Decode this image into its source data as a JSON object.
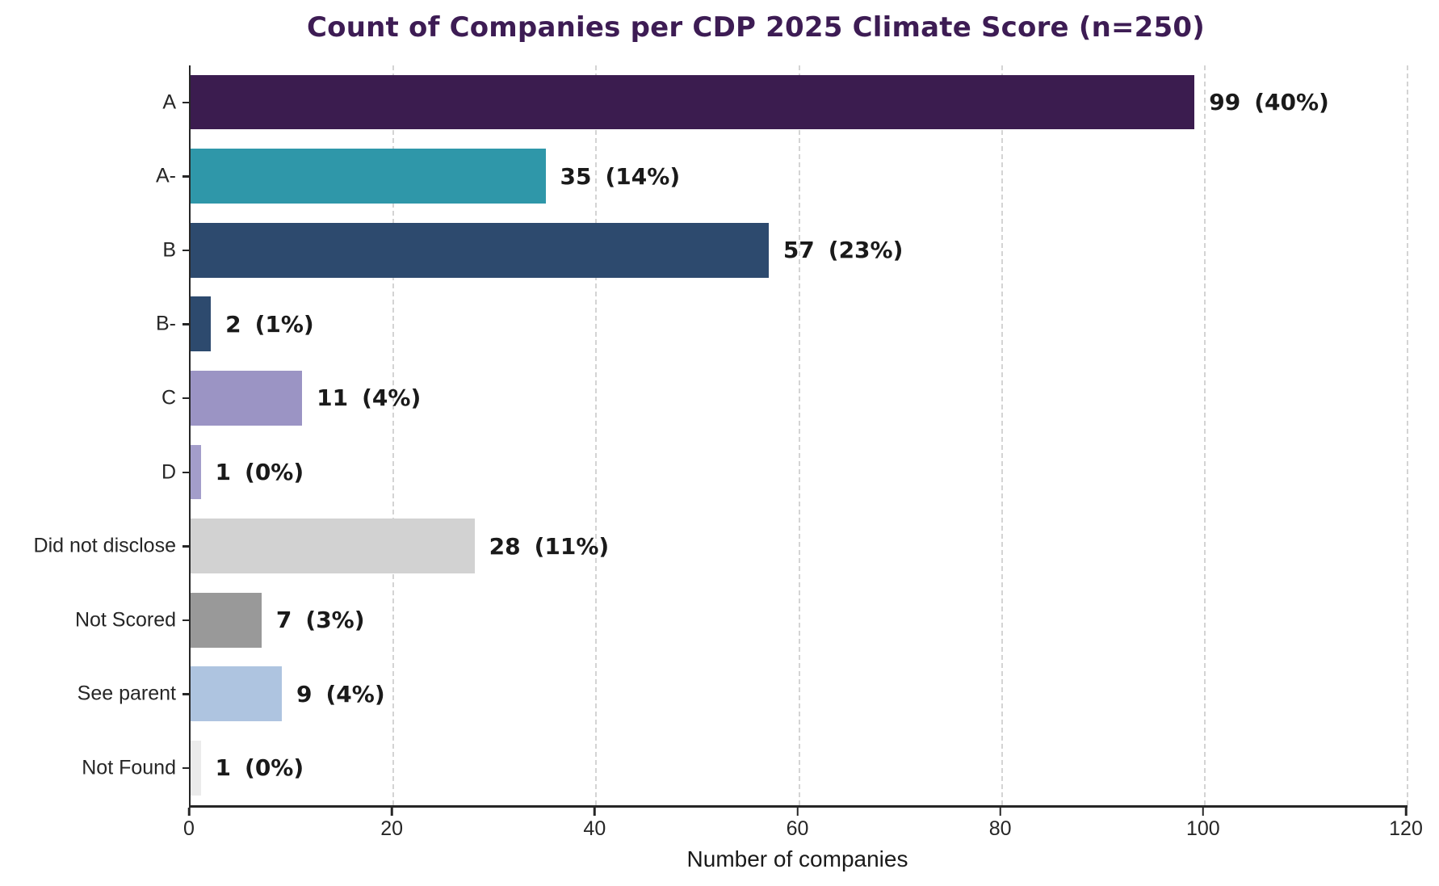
{
  "style": {
    "background": "#ffffff",
    "title_color": "#3d1c54",
    "axis_color": "#262626",
    "grid_color": "#d4d4d4",
    "value_label_color": "#1a1a1a",
    "tick_label_color": "#262626"
  },
  "chart_data": {
    "type": "bar",
    "orientation": "horizontal",
    "title": "Count of Companies per CDP 2025 Climate Score (n=250)",
    "xlabel": "Number of companies",
    "ylabel": "",
    "xlim": [
      0,
      120
    ],
    "xticks": [
      0,
      20,
      40,
      60,
      80,
      100,
      120
    ],
    "grid": "vertical-dashed",
    "legend": "none",
    "total_n": 250,
    "categories": [
      "A",
      "A-",
      "B",
      "B-",
      "C",
      "D",
      "Did not disclose",
      "Not Scored",
      "See parent",
      "Not Found"
    ],
    "values": [
      99,
      35,
      57,
      2,
      11,
      1,
      28,
      7,
      9,
      1
    ],
    "pct_labels": [
      "(40%)",
      "(14%)",
      "(23%)",
      "(1%)",
      "(4%)",
      "(0%)",
      "(11%)",
      "(3%)",
      "(4%)",
      "(0%)"
    ],
    "bar_colors": [
      "#3b1c4f",
      "#2f97a9",
      "#2d4a6e",
      "#2d4a6e",
      "#9b94c4",
      "#a39dca",
      "#d2d2d2",
      "#999999",
      "#aec4e0",
      "#ebebeb"
    ]
  }
}
